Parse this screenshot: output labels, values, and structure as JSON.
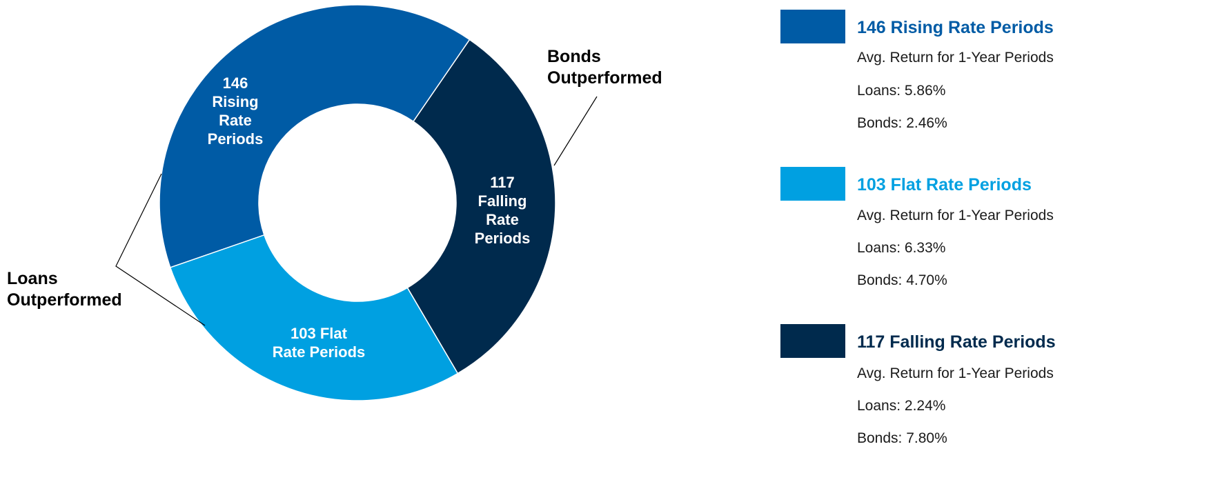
{
  "chart_data": {
    "type": "pie",
    "variant": "donut",
    "slices": [
      {
        "label_lines": [
          "146",
          "Rising",
          "Rate",
          "Periods"
        ],
        "value": 146,
        "color": "#005BA5"
      },
      {
        "label_lines": [
          "117",
          "Falling",
          "Rate",
          "Periods"
        ],
        "value": 117,
        "color": "#002A4D"
      },
      {
        "label_lines": [
          "103 Flat",
          "Rate Periods"
        ],
        "value": 103,
        "color": "#00A0E1"
      }
    ],
    "callouts": [
      {
        "lines": [
          "Bonds",
          "Outperformed"
        ]
      },
      {
        "lines": [
          "Loans",
          "Outperformed"
        ]
      }
    ],
    "legend": [
      {
        "title": "146 Rising Rate Periods",
        "color": "#005BA5",
        "lines": [
          "Avg. Return for 1-Year Periods",
          "Loans: 5.86%",
          "Bonds: 2.46%"
        ]
      },
      {
        "title": "103 Flat Rate Periods",
        "color": "#00A0E1",
        "lines": [
          "Avg. Return for 1-Year Periods",
          "Loans: 6.33%",
          "Bonds: 4.70%"
        ]
      },
      {
        "title": "117 Falling Rate Periods",
        "color": "#002A4D",
        "lines": [
          "Avg. Return for 1-Year Periods",
          "Loans: 2.24%",
          "Bonds: 7.80%"
        ]
      }
    ]
  }
}
